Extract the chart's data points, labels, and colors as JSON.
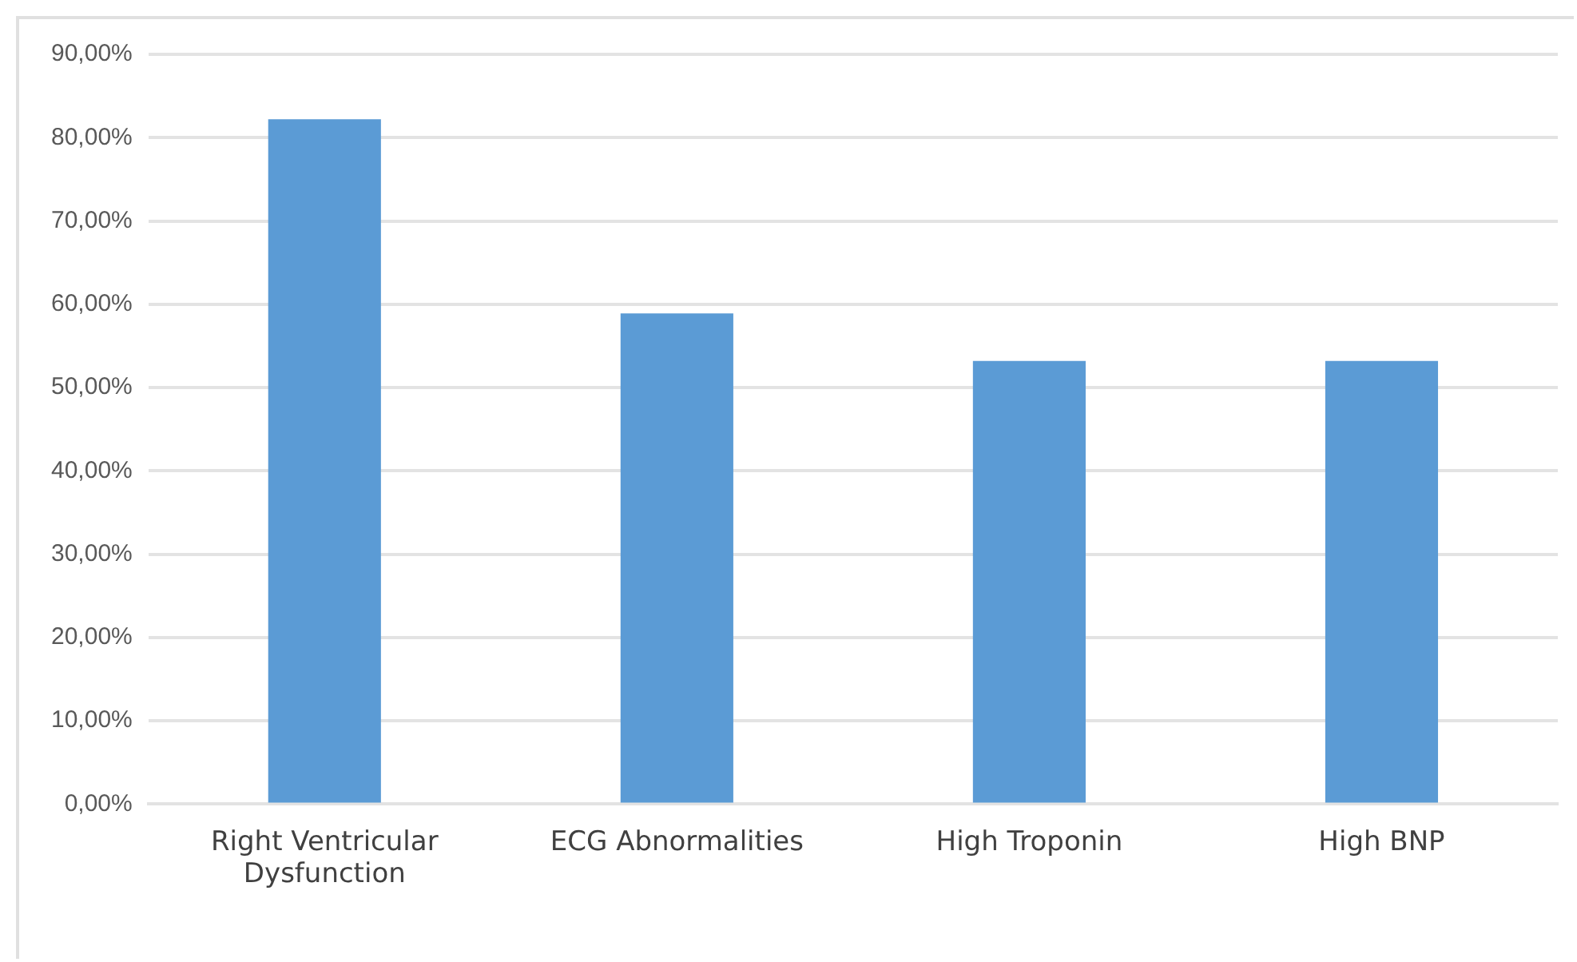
{
  "chart_data": {
    "type": "bar",
    "categories": [
      "Right Ventricular Dysfunction",
      "ECG Abnormalities",
      "High Troponin",
      "High BNP"
    ],
    "values": [
      82.2,
      58.9,
      53.2,
      53.2
    ],
    "color": "#5b9bd5",
    "ylim": [
      0,
      90
    ],
    "yticks": [
      {
        "value": 0,
        "label": "0,00%"
      },
      {
        "value": 10,
        "label": "10,00%"
      },
      {
        "value": 20,
        "label": "20,00%"
      },
      {
        "value": 30,
        "label": "30,00%"
      },
      {
        "value": 40,
        "label": "40,00%"
      },
      {
        "value": 50,
        "label": "50,00%"
      },
      {
        "value": 60,
        "label": "60,00%"
      },
      {
        "value": 70,
        "label": "70,00%"
      },
      {
        "value": 80,
        "label": "80,00%"
      },
      {
        "value": 90,
        "label": "90,00%"
      }
    ],
    "grid": "y",
    "legend": false
  }
}
